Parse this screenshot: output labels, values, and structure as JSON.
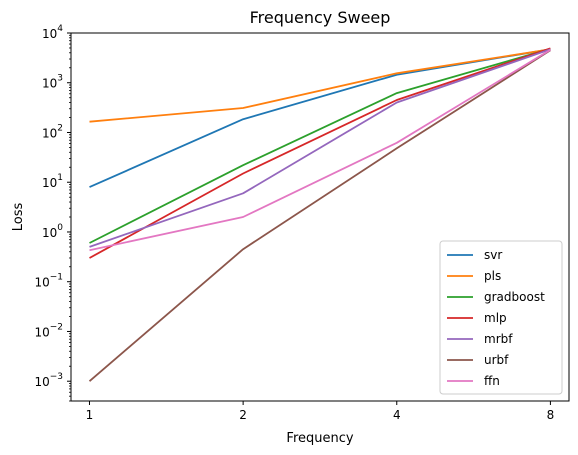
{
  "chart_data": {
    "type": "line",
    "title": "Frequency Sweep",
    "xlabel": "Frequency",
    "ylabel": "Loss",
    "xscale": "log2",
    "yscale": "log10",
    "x": [
      1,
      2,
      4,
      8
    ],
    "x_ticks": [
      "1",
      "2",
      "4",
      "8"
    ],
    "xlim": [
      0.92,
      8.7
    ],
    "ylim": [
      0.0004,
      10000
    ],
    "y_ticks": [
      {
        "value": 0.001,
        "base": "10",
        "exp": "−3"
      },
      {
        "value": 0.01,
        "base": "10",
        "exp": "−2"
      },
      {
        "value": 0.1,
        "base": "10",
        "exp": "−1"
      },
      {
        "value": 1,
        "base": "10",
        "exp": "0"
      },
      {
        "value": 10,
        "base": "10",
        "exp": "1"
      },
      {
        "value": 100,
        "base": "10",
        "exp": "2"
      },
      {
        "value": 1000,
        "base": "10",
        "exp": "3"
      },
      {
        "value": 10000,
        "base": "10",
        "exp": "4"
      }
    ],
    "grid": false,
    "legend_position": "lower-right",
    "series": [
      {
        "name": "svr",
        "color": "#1f77b4",
        "values": [
          8,
          185,
          1450,
          4700
        ]
      },
      {
        "name": "pls",
        "color": "#ff7f0e",
        "values": [
          165,
          310,
          1550,
          4700
        ]
      },
      {
        "name": "gradboost",
        "color": "#2ca02c",
        "values": [
          0.6,
          22,
          620,
          4800
        ]
      },
      {
        "name": "mlp",
        "color": "#d62728",
        "values": [
          0.3,
          15,
          450,
          4900
        ]
      },
      {
        "name": "mrbf",
        "color": "#9467bd",
        "values": [
          0.5,
          6,
          400,
          4700
        ]
      },
      {
        "name": "urbf",
        "color": "#8c564b",
        "values": [
          0.001,
          0.45,
          48,
          4500
        ]
      },
      {
        "name": "ffn",
        "color": "#e377c2",
        "values": [
          0.43,
          2,
          62,
          4600
        ]
      }
    ]
  }
}
